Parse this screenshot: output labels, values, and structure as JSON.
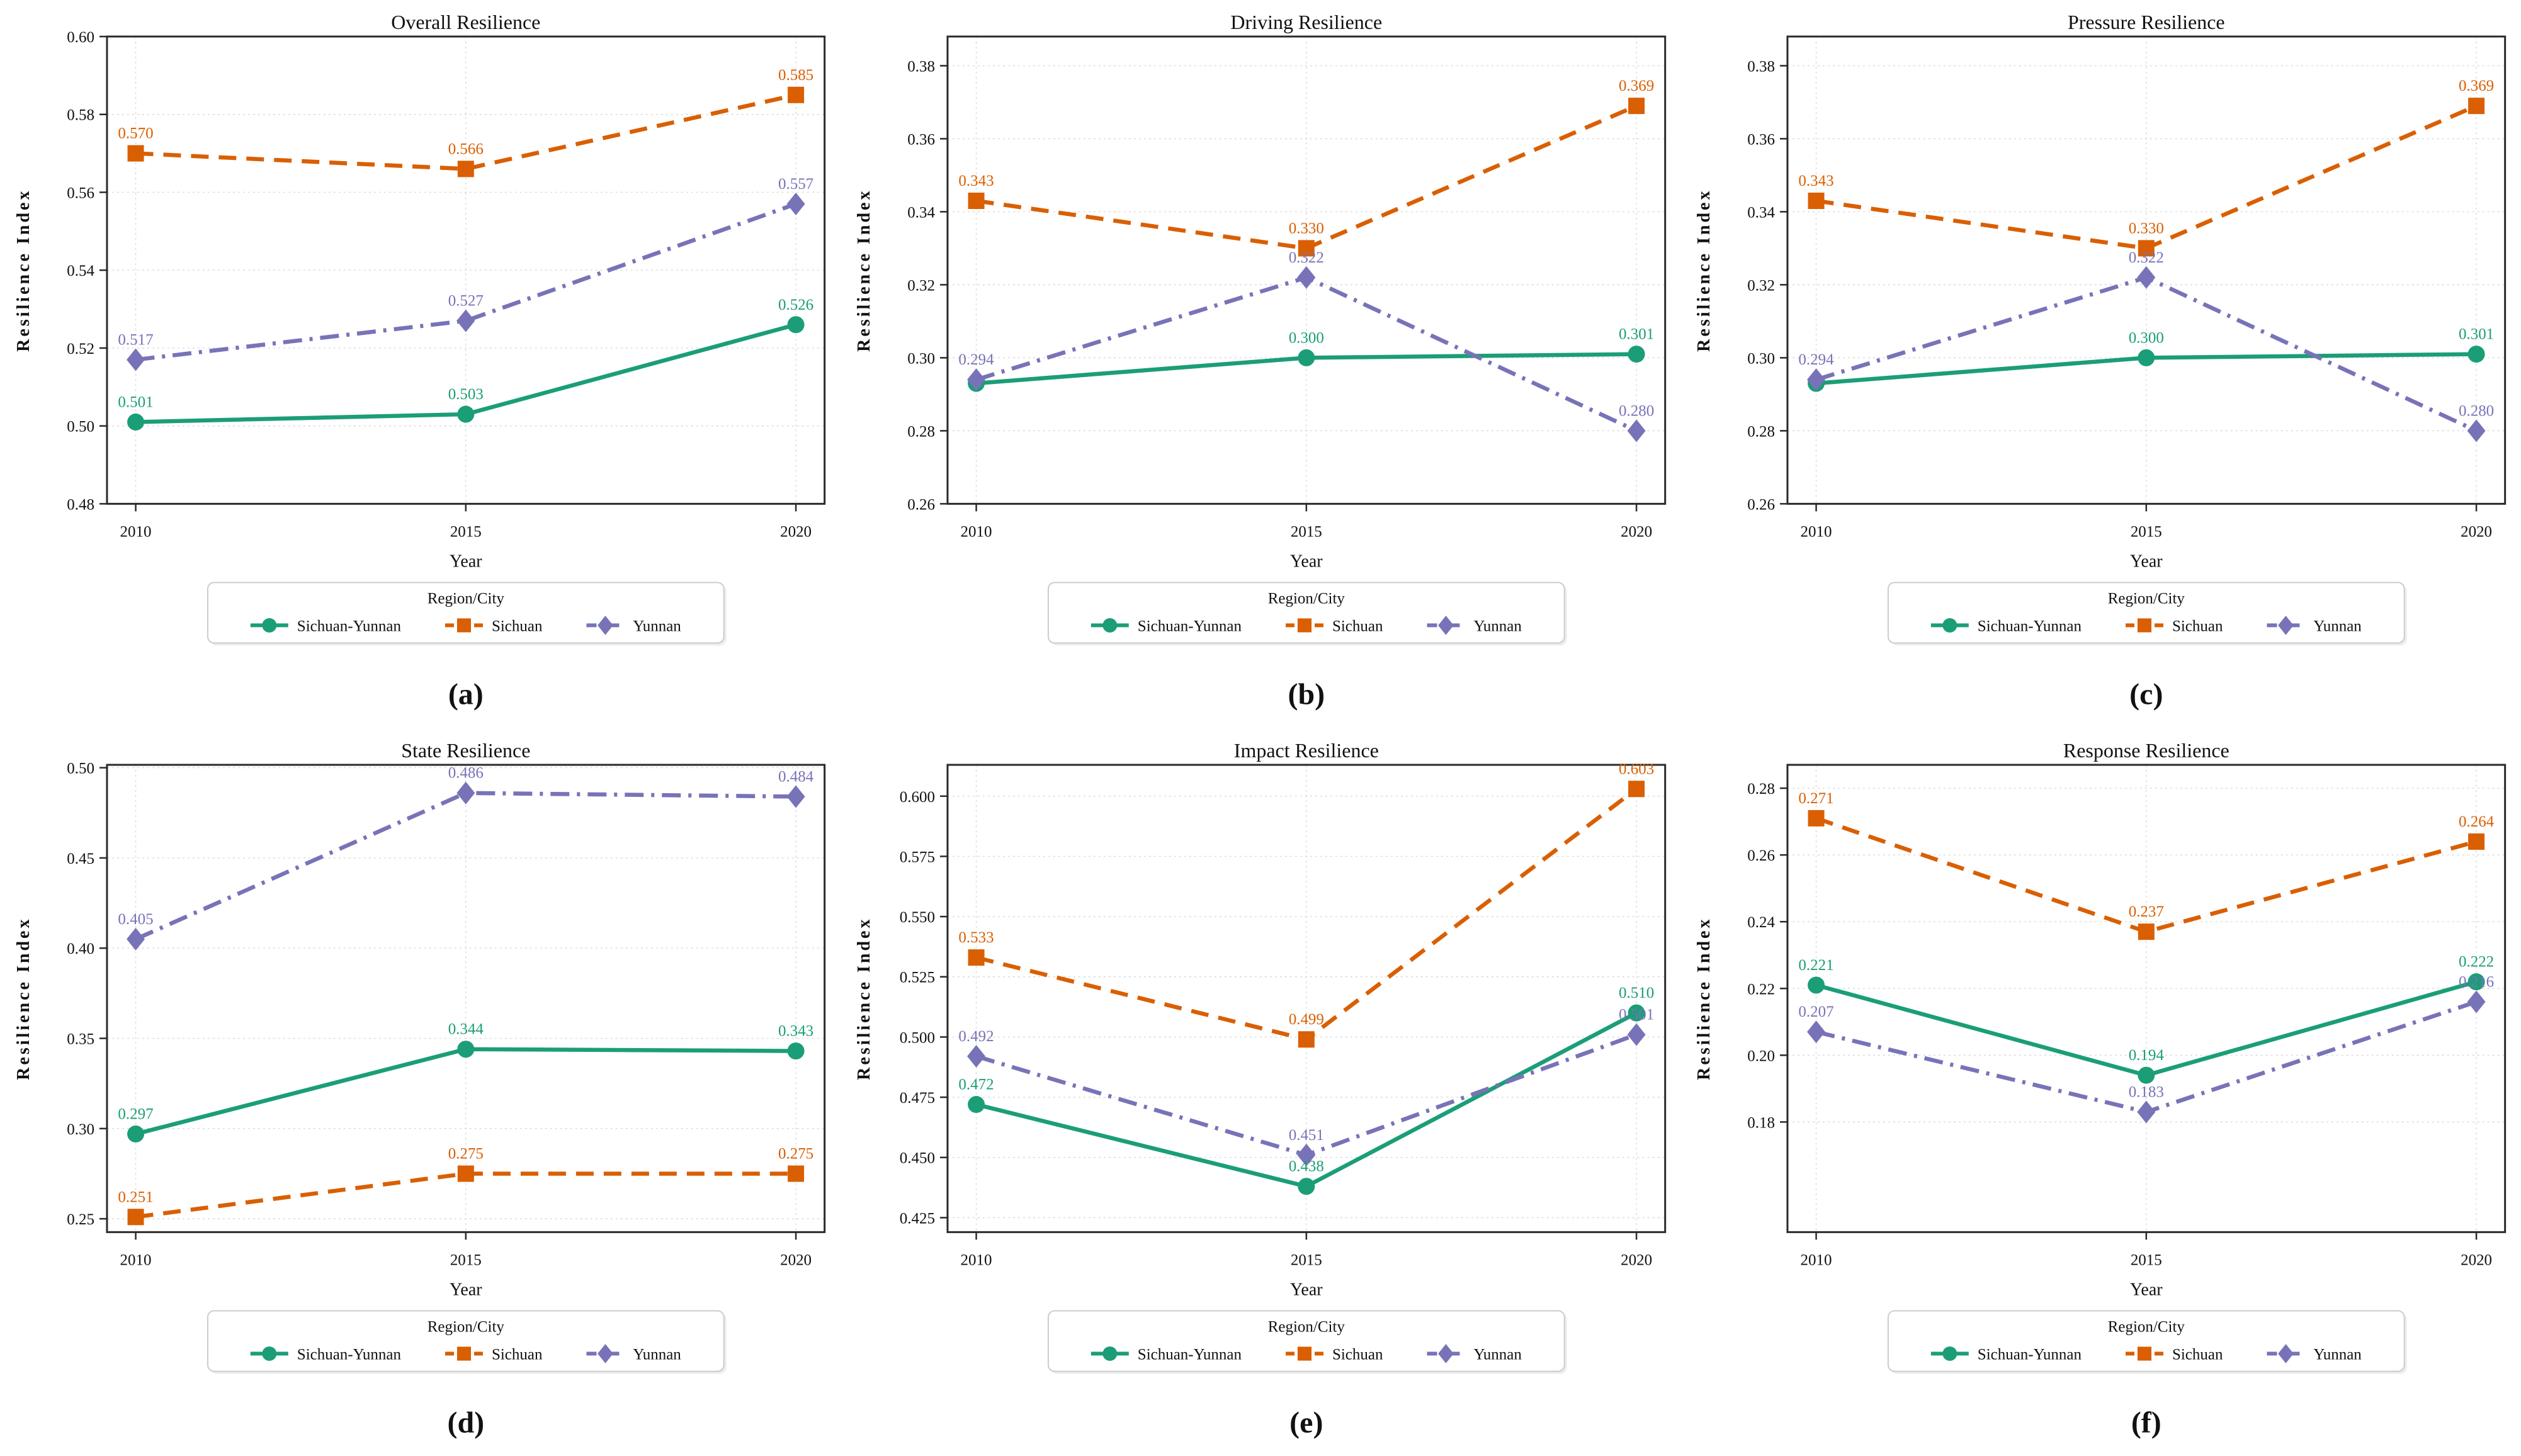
{
  "figure": {
    "xlabel": "Year",
    "ylabel": "Resilience Index",
    "legend_title": "Region/City",
    "x_tick_labels": [
      "2010",
      "2015",
      "2020"
    ],
    "colors": {
      "sichuan_yunnan": "#1b9e77",
      "sichuan": "#d95f02",
      "yunnan": "#7873b8",
      "grid": "#d9d9d9",
      "spine": "#2a2a2a",
      "text": "#111111",
      "legend_border": "#cccccc",
      "background": "#ffffff"
    }
  },
  "chart_data": [
    {
      "type": "line",
      "panel_label": "(a)",
      "title": "Overall Resilience",
      "xlabel": "Year",
      "ylabel": "Resilience Index",
      "x": [
        "2010",
        "2015",
        "2020"
      ],
      "ylim": [
        0.48,
        0.6
      ],
      "yticks": [
        0.48,
        0.5,
        0.52,
        0.54,
        0.56,
        0.58,
        0.6
      ],
      "ytick_labels": [
        "0.48",
        "0.50",
        "0.52",
        "0.54",
        "0.56",
        "0.58",
        "0.60"
      ],
      "grid": true,
      "legend_title": "Region/City",
      "legend_position": "below",
      "series": [
        {
          "name": "Sichuan-Yunnan",
          "color": "#1b9e77",
          "linestyle": "solid",
          "marker": "circle",
          "values": [
            0.501,
            0.503,
            0.526
          ],
          "labels": [
            "0.501",
            "0.503",
            "0.526"
          ]
        },
        {
          "name": "Sichuan",
          "color": "#d95f02",
          "linestyle": "dashed",
          "marker": "square",
          "values": [
            0.57,
            0.566,
            0.585
          ],
          "labels": [
            "0.570",
            "0.566",
            "0.585"
          ]
        },
        {
          "name": "Yunnan",
          "color": "#7873b8",
          "linestyle": "dashdot",
          "marker": "diamond",
          "values": [
            0.517,
            0.527,
            0.557
          ],
          "labels": [
            "0.517",
            "0.527",
            "0.557"
          ]
        }
      ]
    },
    {
      "type": "line",
      "panel_label": "(b)",
      "title": "Driving Resilience",
      "xlabel": "Year",
      "ylabel": "Resilience Index",
      "x": [
        "2010",
        "2015",
        "2020"
      ],
      "ylim": [
        0.26,
        0.388
      ],
      "yticks": [
        0.26,
        0.28,
        0.3,
        0.32,
        0.34,
        0.36,
        0.38
      ],
      "ytick_labels": [
        "0.26",
        "0.28",
        "0.30",
        "0.32",
        "0.34",
        "0.36",
        "0.38"
      ],
      "grid": true,
      "legend_title": "Region/City",
      "legend_position": "below",
      "series": [
        {
          "name": "Sichuan-Yunnan",
          "color": "#1b9e77",
          "linestyle": "solid",
          "marker": "circle",
          "values": [
            0.293,
            0.3,
            0.301
          ],
          "labels": [
            null,
            "0.300",
            "0.301"
          ]
        },
        {
          "name": "Sichuan",
          "color": "#d95f02",
          "linestyle": "dashed",
          "marker": "square",
          "values": [
            0.343,
            0.33,
            0.369
          ],
          "labels": [
            "0.343",
            "0.330",
            "0.369"
          ]
        },
        {
          "name": "Yunnan",
          "color": "#7873b8",
          "linestyle": "dashdot",
          "marker": "diamond",
          "values": [
            0.294,
            0.322,
            0.28
          ],
          "labels": [
            "0.294",
            "0.322",
            "0.280"
          ]
        }
      ]
    },
    {
      "type": "line",
      "panel_label": "(c)",
      "title": "Pressure Resilience",
      "xlabel": "Year",
      "ylabel": "Resilience Index",
      "x": [
        "2010",
        "2015",
        "2020"
      ],
      "ylim": [
        0.26,
        0.388
      ],
      "yticks": [
        0.26,
        0.28,
        0.3,
        0.32,
        0.34,
        0.36,
        0.38
      ],
      "ytick_labels": [
        "0.26",
        "0.28",
        "0.30",
        "0.32",
        "0.34",
        "0.36",
        "0.38"
      ],
      "grid": true,
      "legend_title": "Region/City",
      "legend_position": "below",
      "series": [
        {
          "name": "Sichuan-Yunnan",
          "color": "#1b9e77",
          "linestyle": "solid",
          "marker": "circle",
          "values": [
            0.293,
            0.3,
            0.301
          ],
          "labels": [
            null,
            "0.300",
            "0.301"
          ]
        },
        {
          "name": "Sichuan",
          "color": "#d95f02",
          "linestyle": "dashed",
          "marker": "square",
          "values": [
            0.343,
            0.33,
            0.369
          ],
          "labels": [
            "0.343",
            "0.330",
            "0.369"
          ]
        },
        {
          "name": "Yunnan",
          "color": "#7873b8",
          "linestyle": "dashdot",
          "marker": "diamond",
          "values": [
            0.294,
            0.322,
            0.28
          ],
          "labels": [
            "0.294",
            "0.322",
            "0.280"
          ]
        }
      ]
    },
    {
      "type": "line",
      "panel_label": "(d)",
      "title": "State Resilience",
      "xlabel": "Year",
      "ylabel": "Resilience Index",
      "x": [
        "2010",
        "2015",
        "2020"
      ],
      "ylim": [
        0.2426,
        0.5016
      ],
      "yticks": [
        0.25,
        0.3,
        0.35,
        0.4,
        0.45,
        0.5
      ],
      "ytick_labels": [
        "0.25",
        "0.30",
        "0.35",
        "0.40",
        "0.45",
        "0.50"
      ],
      "grid": true,
      "legend_title": "Region/City",
      "legend_position": "below",
      "series": [
        {
          "name": "Sichuan-Yunnan",
          "color": "#1b9e77",
          "linestyle": "solid",
          "marker": "circle",
          "values": [
            0.297,
            0.344,
            0.343
          ],
          "labels": [
            "0.297",
            "0.344",
            "0.343"
          ]
        },
        {
          "name": "Sichuan",
          "color": "#d95f02",
          "linestyle": "dashed",
          "marker": "square",
          "values": [
            0.251,
            0.275,
            0.275
          ],
          "labels": [
            "0.251",
            "0.275",
            "0.275"
          ]
        },
        {
          "name": "Yunnan",
          "color": "#7873b8",
          "linestyle": "dashdot",
          "marker": "diamond",
          "values": [
            0.405,
            0.486,
            0.484
          ],
          "labels": [
            "0.405",
            "0.486",
            "0.484"
          ]
        }
      ]
    },
    {
      "type": "line",
      "panel_label": "(e)",
      "title": "Impact Resilience",
      "xlabel": "Year",
      "ylabel": "Resilience Index",
      "x": [
        "2010",
        "2015",
        "2020"
      ],
      "ylim": [
        0.419,
        0.613
      ],
      "yticks": [
        0.425,
        0.45,
        0.475,
        0.5,
        0.525,
        0.55,
        0.575,
        0.6
      ],
      "ytick_labels": [
        "0.425",
        "0.450",
        "0.475",
        "0.500",
        "0.525",
        "0.550",
        "0.575",
        "0.600"
      ],
      "grid": true,
      "legend_title": "Region/City",
      "legend_position": "below",
      "series": [
        {
          "name": "Sichuan-Yunnan",
          "color": "#1b9e77",
          "linestyle": "solid",
          "marker": "circle",
          "values": [
            0.472,
            0.438,
            0.51
          ],
          "labels": [
            "0.472",
            "0.438",
            "0.510"
          ]
        },
        {
          "name": "Sichuan",
          "color": "#d95f02",
          "linestyle": "dashed",
          "marker": "square",
          "values": [
            0.533,
            0.499,
            0.603
          ],
          "labels": [
            "0.533",
            "0.499",
            "0.603"
          ]
        },
        {
          "name": "Yunnan",
          "color": "#7873b8",
          "linestyle": "dashdot",
          "marker": "diamond",
          "values": [
            0.492,
            0.451,
            0.501
          ],
          "labels": [
            "0.492",
            "0.451",
            "0.501"
          ]
        }
      ]
    },
    {
      "type": "line",
      "panel_label": "(f)",
      "title": "Response Resilience",
      "xlabel": "Year",
      "ylabel": "Resilience Index",
      "x": [
        "2010",
        "2015",
        "2020"
      ],
      "ylim": [
        0.147,
        0.287
      ],
      "yticks": [
        0.18,
        0.2,
        0.22,
        0.24,
        0.26,
        0.28
      ],
      "ytick_labels": [
        "0.18",
        "0.20",
        "0.22",
        "0.24",
        "0.26",
        "0.28"
      ],
      "grid": true,
      "legend_title": "Region/City",
      "legend_position": "below",
      "series": [
        {
          "name": "Sichuan-Yunnan",
          "color": "#1b9e77",
          "linestyle": "solid",
          "marker": "circle",
          "values": [
            0.221,
            0.194,
            0.222
          ],
          "labels": [
            "0.221",
            "0.194",
            "0.222"
          ]
        },
        {
          "name": "Sichuan",
          "color": "#d95f02",
          "linestyle": "dashed",
          "marker": "square",
          "values": [
            0.271,
            0.237,
            0.264
          ],
          "labels": [
            "0.271",
            "0.237",
            "0.264"
          ]
        },
        {
          "name": "Yunnan",
          "color": "#7873b8",
          "linestyle": "dashdot",
          "marker": "diamond",
          "values": [
            0.207,
            0.183,
            0.216
          ],
          "labels": [
            "0.207",
            "0.183",
            "0.216"
          ]
        }
      ]
    }
  ]
}
